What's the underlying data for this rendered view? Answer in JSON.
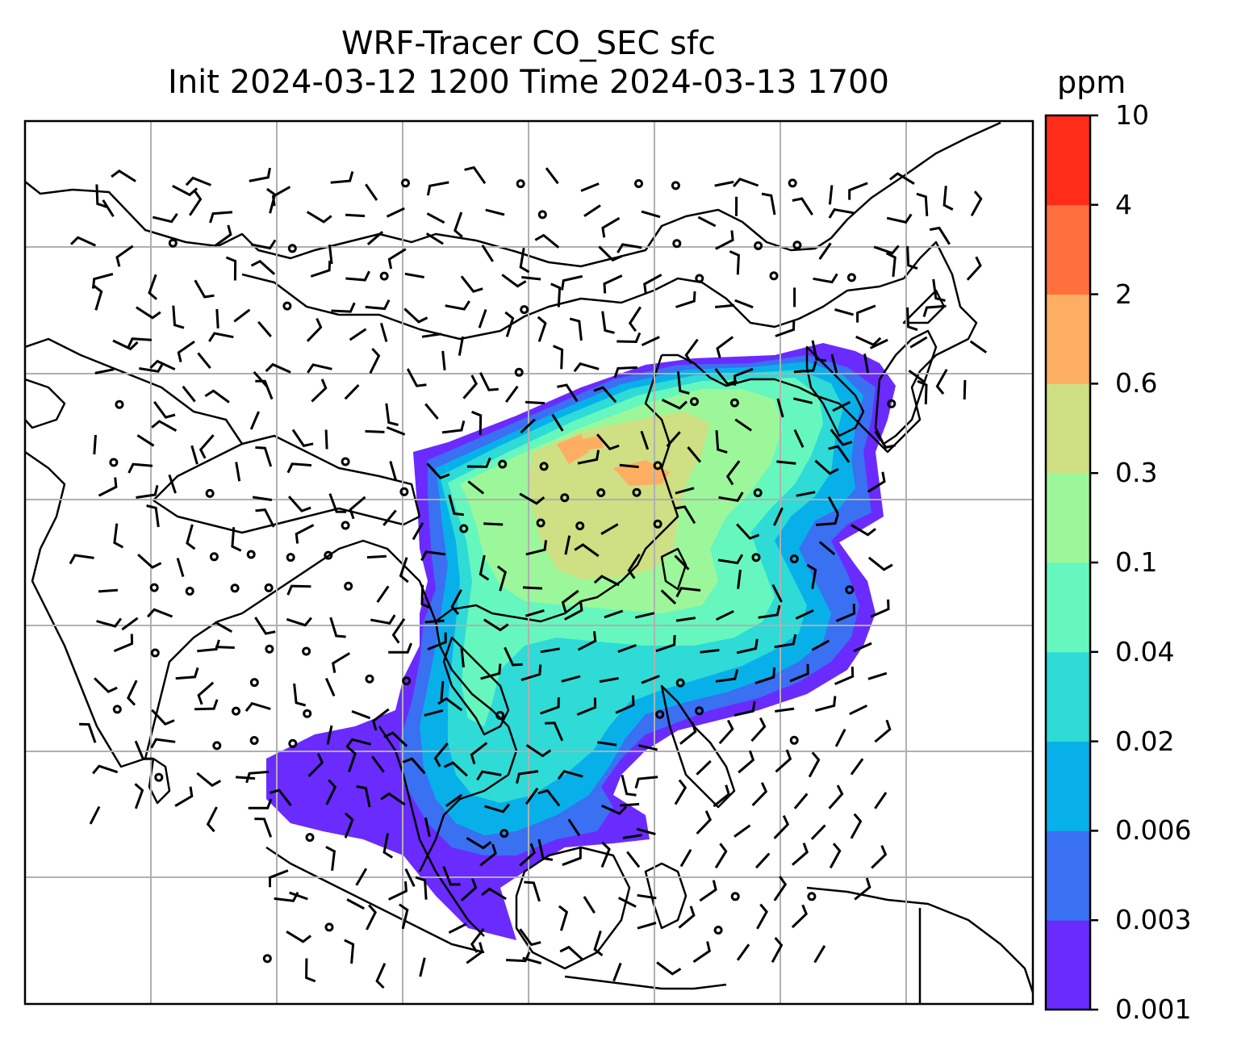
{
  "title": {
    "line1": "WRF-Tracer CO_SEC sfc",
    "line2": "Init 2024-03-12 1200 Time 2024-03-13 1700"
  },
  "colorbar": {
    "unit": "ppm",
    "ticks": [
      "0.001",
      "0.003",
      "0.006",
      "0.02",
      "0.04",
      "0.1",
      "0.3",
      "0.6",
      "2",
      "4",
      "10"
    ],
    "colors": [
      "#6a2bff",
      "#3a70f2",
      "#08b0ea",
      "#2edbd6",
      "#66f7bf",
      "#9cf79a",
      "#cedf84",
      "#feae62",
      "#ff703d",
      "#ff2c1a"
    ]
  },
  "map": {
    "background": "#ffffff",
    "coastline_color": "#000000",
    "gridline_color": "#b0b0b0",
    "wind_barb_color": "#000000",
    "gridlines": true
  }
}
